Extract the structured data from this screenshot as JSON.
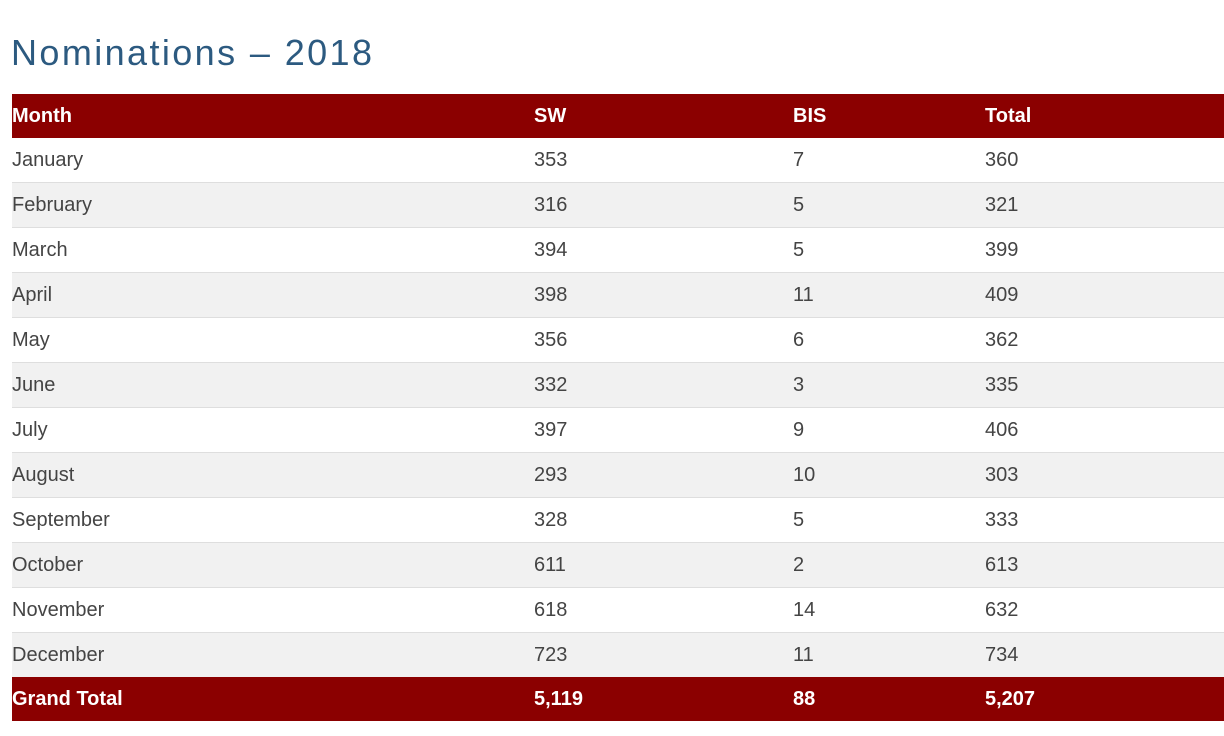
{
  "title": "Nominations – 2018",
  "table": {
    "headers": [
      "Month",
      "SW",
      "BIS",
      "Total"
    ],
    "rows": [
      [
        "January",
        "353",
        "7",
        "360"
      ],
      [
        "February",
        "316",
        "5",
        "321"
      ],
      [
        "March",
        "394",
        "5",
        "399"
      ],
      [
        "April",
        "398",
        "11",
        "409"
      ],
      [
        "May",
        "356",
        "6",
        "362"
      ],
      [
        "June",
        "332",
        "3",
        "335"
      ],
      [
        "July",
        "397",
        "9",
        "406"
      ],
      [
        "August",
        "293",
        "10",
        "303"
      ],
      [
        "September",
        "328",
        "5",
        "333"
      ],
      [
        "October",
        "611",
        "2",
        "613"
      ],
      [
        "November",
        "618",
        "14",
        "632"
      ],
      [
        "December",
        "723",
        "11",
        "734"
      ]
    ],
    "footer": [
      "Grand Total",
      "5,119",
      "88",
      "5,207"
    ]
  },
  "colors": {
    "header_bg": "#8b0000",
    "title": "#2c5a80",
    "row_alt": "#f1f1f1",
    "text": "#444444"
  }
}
